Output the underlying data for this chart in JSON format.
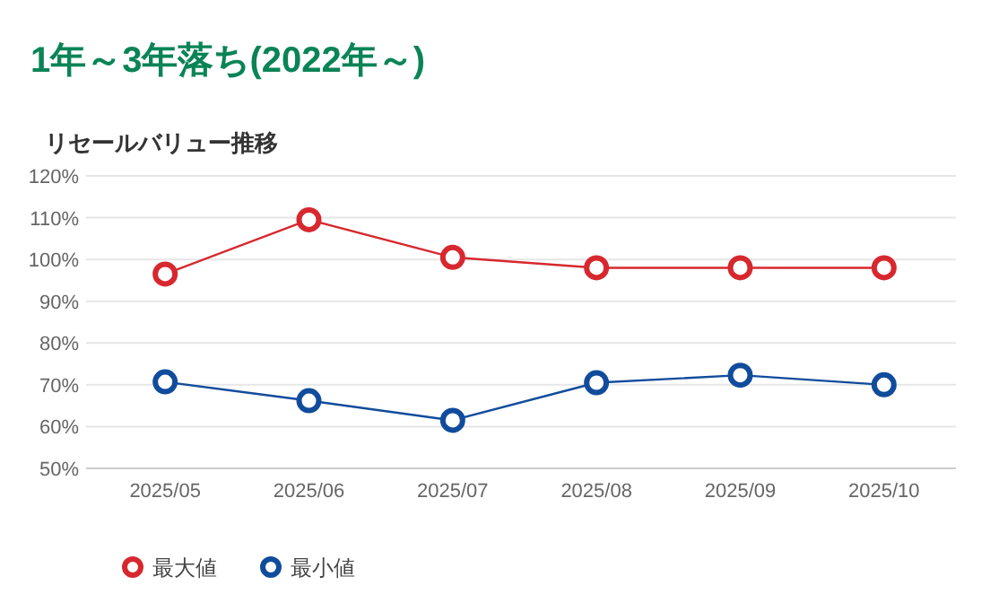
{
  "chart_data": {
    "type": "line",
    "title": "1年～3年落ち(2022年～)",
    "subtitle": "リセールバリュー推移",
    "categories": [
      "2025/05",
      "2025/06",
      "2025/07",
      "2025/08",
      "2025/09",
      "2025/10"
    ],
    "series": [
      {
        "name": "最大値",
        "color": "#d7282f",
        "values": [
          96.5,
          109.5,
          100.5,
          98,
          98,
          98
        ]
      },
      {
        "name": "最小値",
        "color": "#114c9c",
        "values": [
          70.7,
          66.2,
          61.5,
          70.5,
          72.3,
          70
        ]
      }
    ],
    "ylim": [
      50,
      120
    ],
    "yticks": [
      {
        "value": 50,
        "label": "50%"
      },
      {
        "value": 60,
        "label": "60%"
      },
      {
        "value": 70,
        "label": "70%"
      },
      {
        "value": 80,
        "label": "80%"
      },
      {
        "value": 90,
        "label": "90%"
      },
      {
        "value": 100,
        "label": "100%"
      },
      {
        "value": 110,
        "label": "110%"
      },
      {
        "value": 120,
        "label": "120%"
      }
    ],
    "grid": "y",
    "legend": "bottom left",
    "marker": "circle",
    "line_style": "solid"
  }
}
